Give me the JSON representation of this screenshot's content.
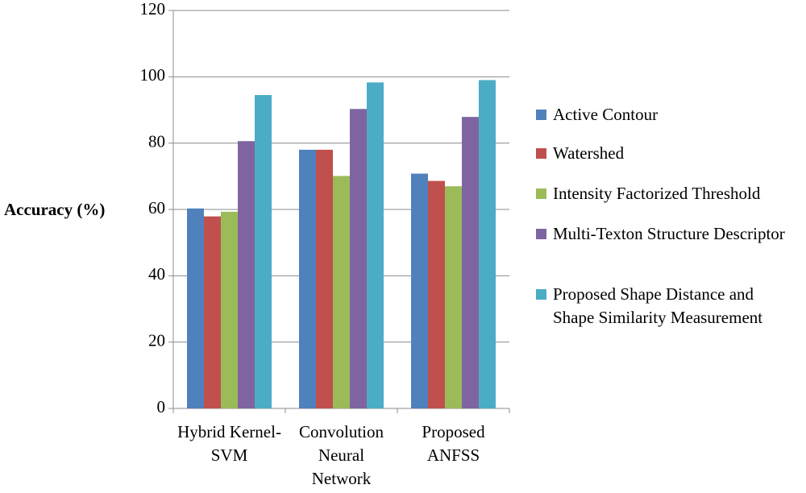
{
  "chart_data": {
    "type": "bar",
    "y_label": "Accuracy (%)",
    "categories": [
      "Hybrid Kernel-SVM",
      "Convolution Neural Network",
      "Proposed ANFSS"
    ],
    "series": [
      {
        "name": "Active Contour",
        "color": "#4f81bd",
        "values": [
          60.3,
          78,
          70.8
        ]
      },
      {
        "name": "Watershed",
        "color": "#c0504d",
        "values": [
          57.9,
          78,
          68.6
        ]
      },
      {
        "name": "Intensity Factorized Threshold",
        "color": "#9bbb59",
        "values": [
          59.3,
          70.1,
          67
        ]
      },
      {
        "name": "Multi-Texton Structure Descriptor",
        "color": "#8064a2",
        "values": [
          80.6,
          90.3,
          87.9
        ]
      },
      {
        "name": "Proposed Shape Distance and Shape Similarity Measurement",
        "color": "#4bacc6",
        "values": [
          94.5,
          98.3,
          99
        ]
      }
    ],
    "ylim": [
      0,
      120
    ],
    "yticks": [
      0,
      20,
      40,
      60,
      80,
      100,
      120
    ],
    "grid": true
  }
}
